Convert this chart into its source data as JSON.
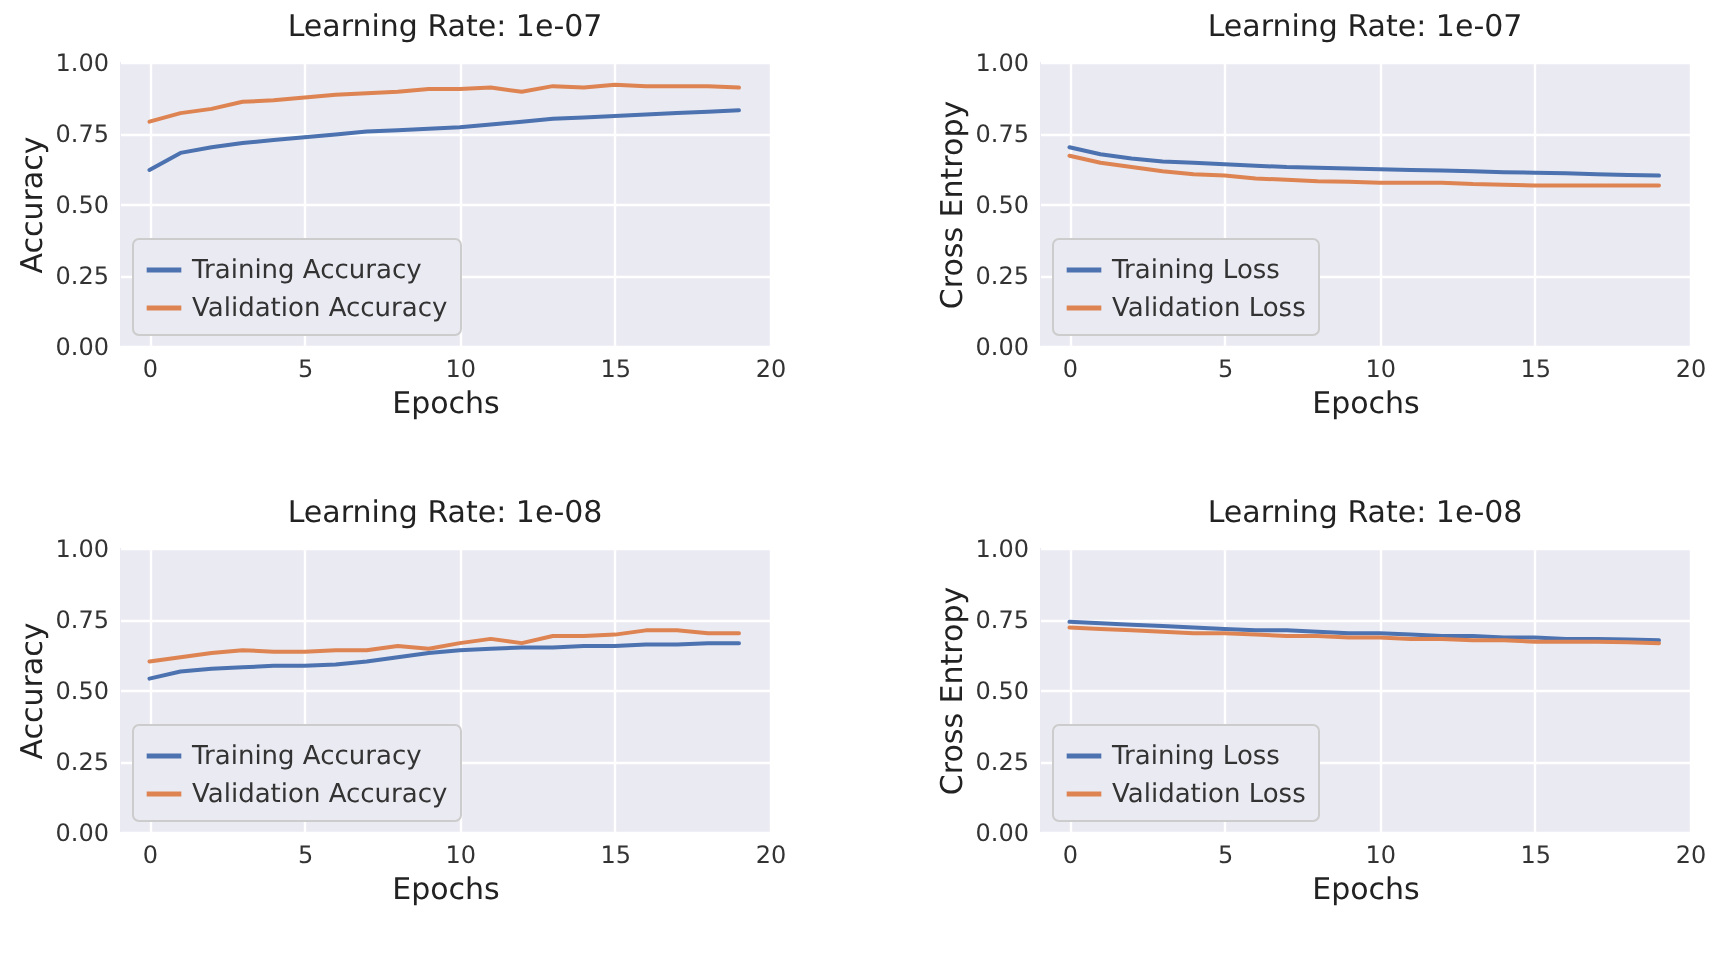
{
  "chart_data": [
    {
      "type": "line",
      "title": "Learning Rate: 1e-07",
      "xlabel": "Epochs",
      "ylabel": "Accuracy",
      "x": [
        0,
        1,
        2,
        3,
        4,
        5,
        6,
        7,
        8,
        9,
        10,
        11,
        12,
        13,
        14,
        15,
        16,
        17,
        18,
        19
      ],
      "xlim": [
        -0.95,
        20
      ],
      "xticks": [
        0,
        5,
        10,
        15,
        20
      ],
      "ylim": [
        0,
        1
      ],
      "yticks": [
        {
          "value": 0,
          "label": "0.00"
        },
        {
          "value": 0.25,
          "label": "0.25"
        },
        {
          "value": 0.5,
          "label": "0.50"
        },
        {
          "value": 0.75,
          "label": "0.75"
        },
        {
          "value": 1,
          "label": "1.00"
        }
      ],
      "grid": true,
      "legend": "bottom left",
      "series": [
        {
          "name": "Training Accuracy",
          "color": "#4c72b0",
          "values": [
            0.62,
            0.68,
            0.7,
            0.715,
            0.725,
            0.735,
            0.745,
            0.755,
            0.76,
            0.765,
            0.77,
            0.78,
            0.79,
            0.8,
            0.805,
            0.81,
            0.815,
            0.82,
            0.825,
            0.83
          ]
        },
        {
          "name": "Validation Accuracy",
          "color": "#dd8452",
          "values": [
            0.79,
            0.82,
            0.835,
            0.86,
            0.865,
            0.875,
            0.885,
            0.89,
            0.895,
            0.905,
            0.905,
            0.91,
            0.895,
            0.915,
            0.91,
            0.92,
            0.915,
            0.915,
            0.915,
            0.91
          ]
        }
      ]
    },
    {
      "type": "line",
      "title": "Learning Rate: 1e-07",
      "xlabel": "Epochs",
      "ylabel": "Cross Entropy",
      "x": [
        0,
        1,
        2,
        3,
        4,
        5,
        6,
        7,
        8,
        9,
        10,
        11,
        12,
        13,
        14,
        15,
        16,
        17,
        18,
        19
      ],
      "xlim": [
        -0.95,
        20
      ],
      "xticks": [
        0,
        5,
        10,
        15,
        20
      ],
      "ylim": [
        0,
        1
      ],
      "yticks": [
        {
          "value": 0,
          "label": "0.00"
        },
        {
          "value": 0.25,
          "label": "0.25"
        },
        {
          "value": 0.5,
          "label": "0.50"
        },
        {
          "value": 0.75,
          "label": "0.75"
        },
        {
          "value": 1,
          "label": "1.00"
        }
      ],
      "grid": true,
      "legend": "bottom left",
      "series": [
        {
          "name": "Training Loss",
          "color": "#4c72b0",
          "values": [
            0.7,
            0.675,
            0.66,
            0.65,
            0.645,
            0.64,
            0.635,
            0.63,
            0.628,
            0.625,
            0.622,
            0.62,
            0.618,
            0.615,
            0.612,
            0.61,
            0.608,
            0.605,
            0.602,
            0.6
          ]
        },
        {
          "name": "Validation Loss",
          "color": "#dd8452",
          "values": [
            0.67,
            0.645,
            0.63,
            0.615,
            0.605,
            0.6,
            0.59,
            0.585,
            0.58,
            0.578,
            0.575,
            0.575,
            0.575,
            0.57,
            0.568,
            0.565,
            0.565,
            0.565,
            0.565,
            0.565
          ]
        }
      ]
    },
    {
      "type": "line",
      "title": "Learning Rate: 1e-08",
      "xlabel": "Epochs",
      "ylabel": "Accuracy",
      "x": [
        0,
        1,
        2,
        3,
        4,
        5,
        6,
        7,
        8,
        9,
        10,
        11,
        12,
        13,
        14,
        15,
        16,
        17,
        18,
        19
      ],
      "xlim": [
        -0.95,
        20
      ],
      "xticks": [
        0,
        5,
        10,
        15,
        20
      ],
      "ylim": [
        0,
        1
      ],
      "yticks": [
        {
          "value": 0,
          "label": "0.00"
        },
        {
          "value": 0.25,
          "label": "0.25"
        },
        {
          "value": 0.5,
          "label": "0.50"
        },
        {
          "value": 0.75,
          "label": "0.75"
        },
        {
          "value": 1,
          "label": "1.00"
        }
      ],
      "grid": true,
      "legend": "bottom left",
      "series": [
        {
          "name": "Training Accuracy",
          "color": "#4c72b0",
          "values": [
            0.54,
            0.565,
            0.575,
            0.58,
            0.585,
            0.585,
            0.59,
            0.6,
            0.615,
            0.63,
            0.64,
            0.645,
            0.65,
            0.65,
            0.655,
            0.655,
            0.66,
            0.66,
            0.665,
            0.665
          ]
        },
        {
          "name": "Validation Accuracy",
          "color": "#dd8452",
          "values": [
            0.6,
            0.615,
            0.63,
            0.64,
            0.635,
            0.635,
            0.64,
            0.64,
            0.655,
            0.645,
            0.665,
            0.68,
            0.665,
            0.69,
            0.69,
            0.695,
            0.71,
            0.71,
            0.7,
            0.7
          ]
        }
      ]
    },
    {
      "type": "line",
      "title": "Learning Rate: 1e-08",
      "xlabel": "Epochs",
      "ylabel": "Cross Entropy",
      "x": [
        0,
        1,
        2,
        3,
        4,
        5,
        6,
        7,
        8,
        9,
        10,
        11,
        12,
        13,
        14,
        15,
        16,
        17,
        18,
        19
      ],
      "xlim": [
        -0.95,
        20
      ],
      "xticks": [
        0,
        5,
        10,
        15,
        20
      ],
      "ylim": [
        0,
        1
      ],
      "yticks": [
        {
          "value": 0,
          "label": "0.00"
        },
        {
          "value": 0.25,
          "label": "0.25"
        },
        {
          "value": 0.5,
          "label": "0.50"
        },
        {
          "value": 0.75,
          "label": "0.75"
        },
        {
          "value": 1,
          "label": "1.00"
        }
      ],
      "grid": true,
      "legend": "bottom left",
      "series": [
        {
          "name": "Training Loss",
          "color": "#4c72b0",
          "values": [
            0.74,
            0.735,
            0.73,
            0.725,
            0.72,
            0.715,
            0.71,
            0.71,
            0.705,
            0.7,
            0.7,
            0.695,
            0.69,
            0.69,
            0.685,
            0.685,
            0.68,
            0.68,
            0.678,
            0.675
          ]
        },
        {
          "name": "Validation Loss",
          "color": "#dd8452",
          "values": [
            0.72,
            0.715,
            0.71,
            0.705,
            0.7,
            0.7,
            0.695,
            0.69,
            0.69,
            0.685,
            0.685,
            0.68,
            0.68,
            0.675,
            0.675,
            0.67,
            0.67,
            0.67,
            0.668,
            0.665
          ]
        }
      ]
    }
  ]
}
